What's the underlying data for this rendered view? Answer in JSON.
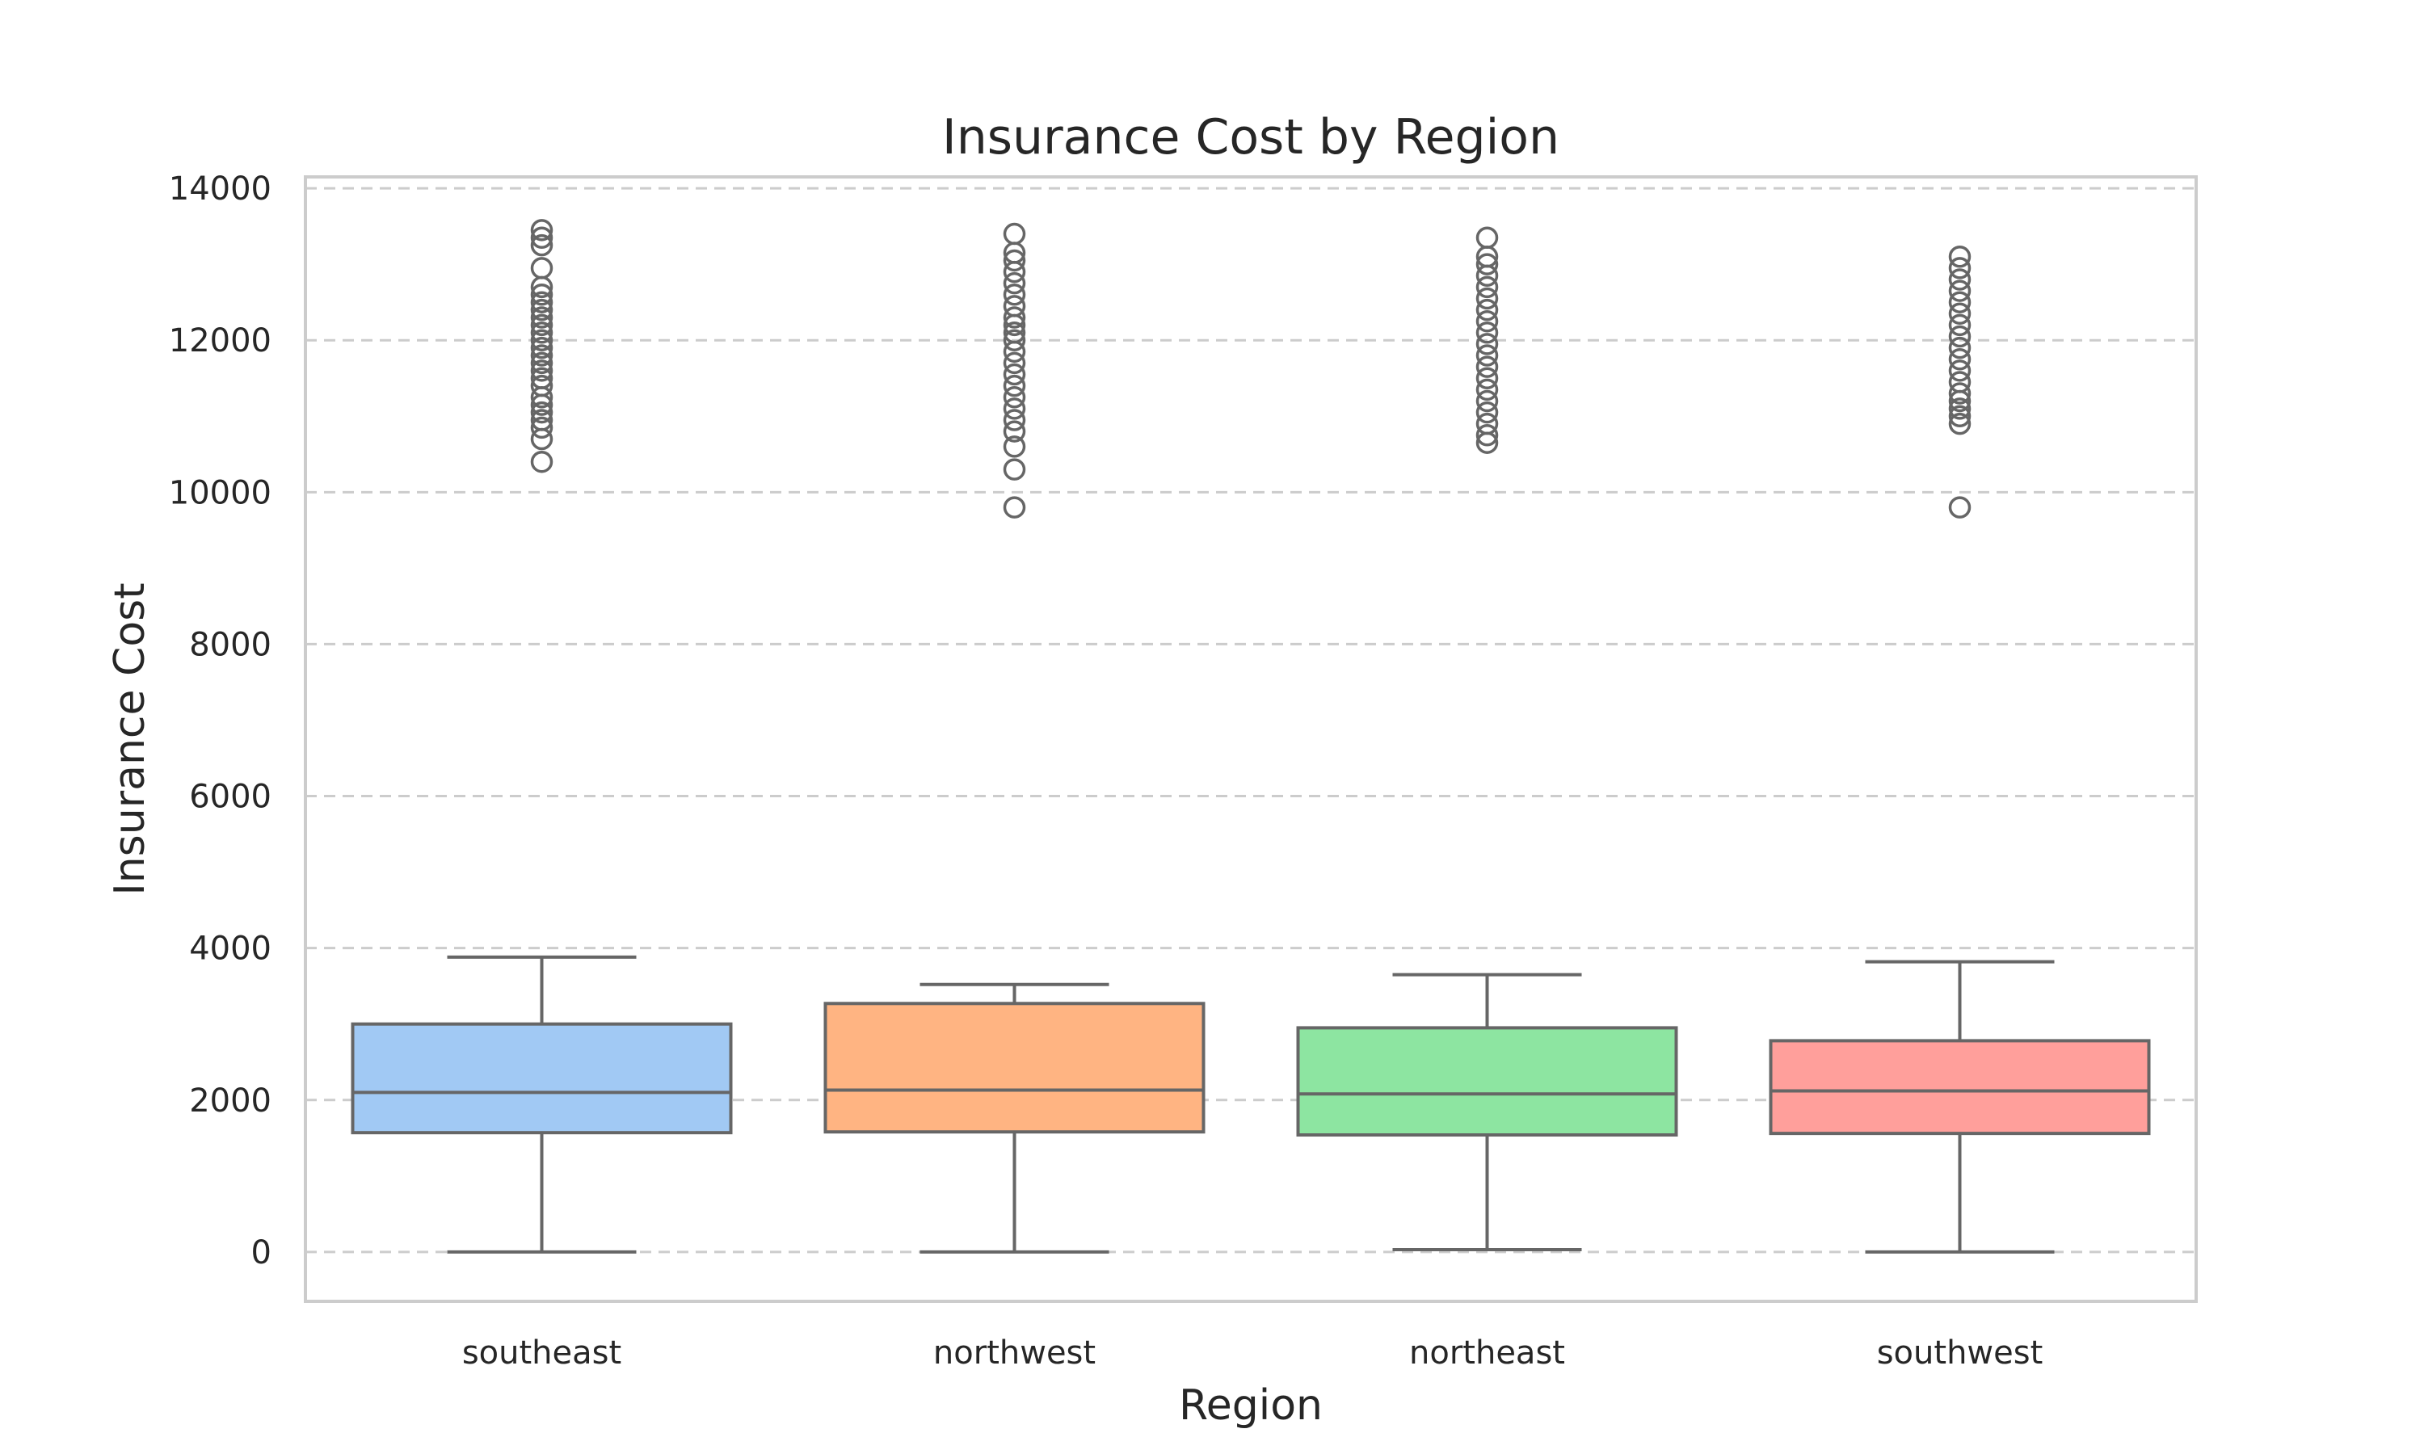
{
  "chart_data": {
    "type": "box",
    "title": "Insurance Cost by Region",
    "xlabel": "Region",
    "ylabel": "Insurance Cost",
    "ylim": [
      -650,
      14150
    ],
    "yticks": [
      0,
      2000,
      4000,
      6000,
      8000,
      10000,
      12000,
      14000
    ],
    "ytick_labels": [
      "0",
      "2000",
      "4000",
      "6000",
      "8000",
      "10000",
      "12000",
      "14000"
    ],
    "grid": "horizontal dashed",
    "categories": [
      "southeast",
      "northwest",
      "northeast",
      "southwest"
    ],
    "colors": [
      "#a1c9f4",
      "#ffb482",
      "#8de5a1",
      "#ff9f9b"
    ],
    "boxes": [
      {
        "name": "southeast",
        "whisker_low": 0,
        "q1": 1570,
        "median": 2100,
        "q3": 3000,
        "whisker_high": 3880,
        "outliers": [
          10400,
          10700,
          10850,
          10950,
          11050,
          11150,
          11250,
          11400,
          11500,
          11600,
          11700,
          11800,
          11900,
          12000,
          12100,
          12200,
          12300,
          12400,
          12500,
          12600,
          12700,
          12950,
          13250,
          13350,
          13450
        ]
      },
      {
        "name": "northwest",
        "whisker_low": 0,
        "q1": 1580,
        "median": 2130,
        "q3": 3270,
        "whisker_high": 3520,
        "outliers": [
          9800,
          10300,
          10600,
          10800,
          10950,
          11100,
          11250,
          11400,
          11550,
          11700,
          11850,
          12000,
          12100,
          12200,
          12300,
          12450,
          12600,
          12750,
          12900,
          13050,
          13150,
          13400
        ]
      },
      {
        "name": "northeast",
        "whisker_low": 30,
        "q1": 1540,
        "median": 2080,
        "q3": 2950,
        "whisker_high": 3650,
        "outliers": [
          10650,
          10750,
          10900,
          11050,
          11200,
          11350,
          11500,
          11650,
          11800,
          11950,
          12100,
          12250,
          12400,
          12550,
          12700,
          12850,
          13000,
          13100,
          13350
        ]
      },
      {
        "name": "southwest",
        "whisker_low": 0,
        "q1": 1560,
        "median": 2120,
        "q3": 2780,
        "whisker_high": 3820,
        "outliers": [
          9800,
          10900,
          11000,
          11100,
          11200,
          11300,
          11450,
          11600,
          11750,
          11900,
          12050,
          12200,
          12350,
          12500,
          12650,
          12800,
          12950,
          13100
        ]
      }
    ]
  }
}
